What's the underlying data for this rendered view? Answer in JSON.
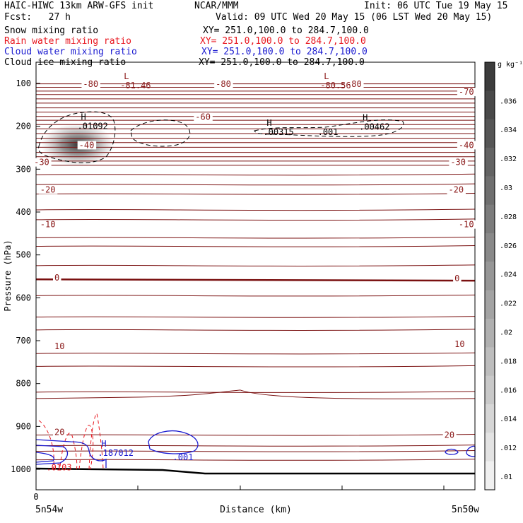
{
  "header": {
    "title": "HAIC-HIWC 13km ARW-GFS init",
    "org": "NCAR/MMM",
    "init": "Init: 06 UTC Tue 19 May 15",
    "fcst": "Fcst:   27 h",
    "valid": "Valid: 09 UTC Wed 20 May 15 (06 LST Wed 20 May 15)"
  },
  "fields": [
    {
      "label": "Snow mixing ratio",
      "xy": "XY= 251.0,100.0 to 284.7,100.0",
      "color": "#000000"
    },
    {
      "label": "Rain water mixing ratio",
      "xy": "XY= 251.0,100.0 to 284.7,100.0",
      "color": "#e8161e"
    },
    {
      "label": "Cloud water mixing ratio",
      "xy": "XY= 251.0,100.0 to 284.7,100.0",
      "color": "#1a1ad0"
    },
    {
      "label": "Cloud ice mixing ratio",
      "xy": "XY= 251.0,100.0 to 284.7,100.0",
      "color": "#000000"
    }
  ],
  "chart_data": {
    "type": "heatmap",
    "ylabel": "Pressure (hPa)",
    "xlabel": "Distance (km)",
    "x_start_label": "5n54w",
    "x_end_label": "5n50w",
    "x_ticks": [
      "0"
    ],
    "y_ticks": [
      100,
      200,
      300,
      400,
      500,
      600,
      700,
      800,
      900,
      1000
    ],
    "ylim": [
      1050,
      50
    ],
    "colorbar": {
      "unit": "g kg⁻¹",
      "ticks": [
        ".01",
        ".012",
        ".014",
        ".016",
        ".018",
        ".02",
        ".022",
        ".024",
        ".026",
        ".028",
        ".03",
        ".032",
        ".034",
        ".036"
      ]
    },
    "temperature_labels": [
      {
        "text": "-80",
        "x": 0.23,
        "p": 107
      },
      {
        "text": "-80",
        "x": 0.88,
        "p": 107
      },
      {
        "text": "-80",
        "x": 1.52,
        "p": 107
      },
      {
        "text": "-70",
        "x": 2.07,
        "p": 125
      },
      {
        "text": "-60",
        "x": 0.78,
        "p": 183
      },
      {
        "text": "-40",
        "x": 0.21,
        "p": 249
      },
      {
        "text": "-40",
        "x": 2.07,
        "p": 249
      },
      {
        "text": "-30",
        "x": -0.01,
        "p": 289
      },
      {
        "text": "-30",
        "x": 2.03,
        "p": 289
      },
      {
        "text": "-20",
        "x": 0.02,
        "p": 353
      },
      {
        "text": "-20",
        "x": 2.02,
        "p": 353
      },
      {
        "text": "-10",
        "x": 0.02,
        "p": 434
      },
      {
        "text": "-10",
        "x": 2.07,
        "p": 434
      },
      {
        "text": "0",
        "x": 0.09,
        "p": 558
      },
      {
        "text": "0",
        "x": 2.05,
        "p": 560
      },
      {
        "text": "10",
        "x": 0.09,
        "p": 718
      },
      {
        "text": "10",
        "x": 2.05,
        "p": 713
      },
      {
        "text": "20",
        "x": 0.09,
        "p": 918
      },
      {
        "text": "20",
        "x": 2.0,
        "p": 925
      }
    ],
    "extrema": [
      {
        "kind": "L",
        "value": "-81.46",
        "x": 0.43,
        "p": 103,
        "color": "#8b1a1a"
      },
      {
        "kind": "L",
        "value": "-80.56",
        "x": 1.41,
        "p": 103,
        "color": "#8b1a1a"
      },
      {
        "kind": "H",
        "value": ".01092",
        "x": 0.22,
        "p": 198,
        "color": "#000000"
      },
      {
        "kind": "H",
        "value": ".00315",
        "x": 1.13,
        "p": 212,
        "color": "#000000"
      },
      {
        "kind": "H",
        "value": ".00462",
        "x": 1.6,
        "p": 200,
        "color": "#000000"
      },
      {
        "kind": "H",
        "value": ".187012",
        "x": 0.32,
        "p": 960,
        "color": "#1a1ad0"
      }
    ],
    "contour_labels": [
      {
        "text": ".001",
        "x": 1.38,
        "p": 214,
        "color": "#000000"
      },
      {
        "text": ".001",
        "x": 0.67,
        "p": 972,
        "color": "#1a1ad0"
      },
      {
        "text": ".0103",
        "x": 0.05,
        "p": 996,
        "color": "#e8161e"
      }
    ]
  }
}
